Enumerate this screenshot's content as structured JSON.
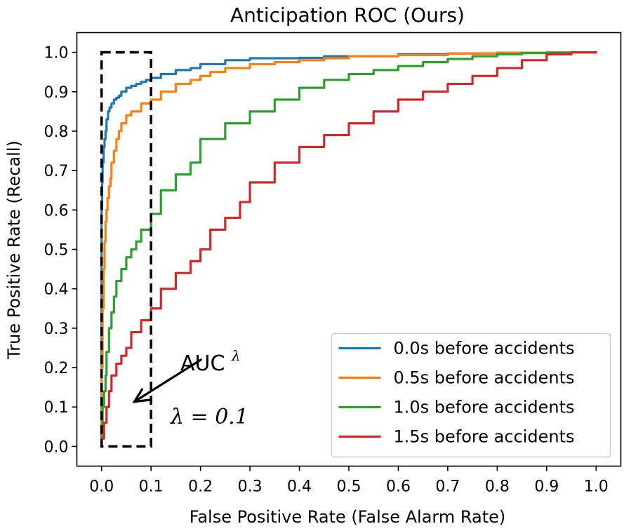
{
  "chart_data": {
    "type": "line",
    "title": "Anticipation ROC (Ours)",
    "xlabel": "False Positive Rate (False Alarm Rate)",
    "ylabel": "True Positive Rate (Recall)",
    "xlim": [
      -0.05,
      1.05
    ],
    "ylim": [
      -0.05,
      1.05
    ],
    "xticks": [
      "0.0",
      "0.1",
      "0.2",
      "0.3",
      "0.4",
      "0.5",
      "0.6",
      "0.7",
      "0.8",
      "0.9",
      "1.0"
    ],
    "yticks": [
      "0.0",
      "0.1",
      "0.2",
      "0.3",
      "0.4",
      "0.5",
      "0.6",
      "0.7",
      "0.8",
      "0.9",
      "1.0"
    ],
    "legend_position": "lower-right",
    "series": [
      {
        "name": "0.0s before accidents",
        "color": "#1f77b4",
        "x": [
          0,
          0,
          0.001,
          0.002,
          0.004,
          0.006,
          0.008,
          0.01,
          0.013,
          0.016,
          0.02,
          0.025,
          0.03,
          0.035,
          0.04,
          0.05,
          0.06,
          0.07,
          0.08,
          0.09,
          0.1,
          0.12,
          0.15,
          0.18,
          0.2,
          0.25,
          0.3,
          0.32,
          0.35,
          0.4,
          0.45,
          0.5,
          0.6,
          0.7,
          0.8,
          0.9,
          1.0
        ],
        "y": [
          0,
          0.4,
          0.6,
          0.67,
          0.72,
          0.76,
          0.78,
          0.8,
          0.83,
          0.85,
          0.86,
          0.87,
          0.88,
          0.885,
          0.89,
          0.9,
          0.91,
          0.915,
          0.92,
          0.925,
          0.93,
          0.935,
          0.945,
          0.955,
          0.96,
          0.97,
          0.98,
          0.985,
          0.985,
          0.985,
          0.986,
          0.99,
          0.99,
          0.995,
          0.997,
          0.999,
          1.0
        ]
      },
      {
        "name": "0.5s before accidents",
        "color": "#ff7f0e",
        "x": [
          0,
          0.002,
          0.004,
          0.006,
          0.008,
          0.01,
          0.012,
          0.015,
          0.018,
          0.02,
          0.025,
          0.03,
          0.035,
          0.04,
          0.05,
          0.06,
          0.08,
          0.1,
          0.12,
          0.15,
          0.18,
          0.2,
          0.22,
          0.25,
          0.3,
          0.35,
          0.4,
          0.45,
          0.5,
          0.55,
          0.6,
          0.7,
          0.8,
          0.9,
          1.0
        ],
        "y": [
          0,
          0.2,
          0.35,
          0.45,
          0.52,
          0.57,
          0.6,
          0.63,
          0.66,
          0.68,
          0.72,
          0.75,
          0.78,
          0.8,
          0.82,
          0.84,
          0.85,
          0.87,
          0.88,
          0.9,
          0.92,
          0.93,
          0.94,
          0.95,
          0.96,
          0.97,
          0.975,
          0.98,
          0.985,
          0.99,
          0.99,
          0.993,
          0.997,
          0.999,
          1.0
        ]
      },
      {
        "name": "1.0s before accidents",
        "color": "#2ca02c",
        "x": [
          0,
          0.002,
          0.005,
          0.008,
          0.01,
          0.015,
          0.02,
          0.025,
          0.03,
          0.04,
          0.05,
          0.06,
          0.07,
          0.08,
          0.1,
          0.12,
          0.15,
          0.18,
          0.2,
          0.25,
          0.3,
          0.35,
          0.4,
          0.45,
          0.5,
          0.55,
          0.6,
          0.65,
          0.7,
          0.75,
          0.8,
          0.85,
          0.9,
          0.95,
          1.0
        ],
        "y": [
          0,
          0.05,
          0.1,
          0.14,
          0.18,
          0.24,
          0.3,
          0.34,
          0.38,
          0.42,
          0.45,
          0.48,
          0.5,
          0.52,
          0.55,
          0.59,
          0.65,
          0.69,
          0.72,
          0.78,
          0.82,
          0.85,
          0.88,
          0.91,
          0.93,
          0.945,
          0.955,
          0.965,
          0.975,
          0.983,
          0.99,
          0.995,
          0.998,
          0.999,
          1.0
        ]
      },
      {
        "name": "1.5s before accidents",
        "color": "#d62728",
        "x": [
          0,
          0.005,
          0.01,
          0.015,
          0.02,
          0.03,
          0.04,
          0.05,
          0.06,
          0.08,
          0.1,
          0.12,
          0.15,
          0.18,
          0.2,
          0.22,
          0.25,
          0.28,
          0.3,
          0.35,
          0.4,
          0.45,
          0.5,
          0.55,
          0.6,
          0.65,
          0.7,
          0.75,
          0.8,
          0.85,
          0.9,
          0.95,
          1.0
        ],
        "y": [
          0,
          0.02,
          0.06,
          0.1,
          0.14,
          0.18,
          0.21,
          0.23,
          0.25,
          0.29,
          0.32,
          0.35,
          0.4,
          0.44,
          0.47,
          0.5,
          0.55,
          0.58,
          0.62,
          0.67,
          0.72,
          0.76,
          0.79,
          0.82,
          0.85,
          0.88,
          0.9,
          0.92,
          0.94,
          0.96,
          0.98,
          0.995,
          1.0
        ]
      }
    ],
    "annotations": {
      "auc_label": "AUC",
      "auc_superscript": "λ",
      "lambda_label": "λ = 0.1",
      "dashed_box": {
        "x": [
          0,
          0.1
        ],
        "y": [
          0,
          1.0
        ]
      },
      "arrow_from": [
        0.16,
        0.2
      ],
      "arrow_to": [
        0.055,
        0.11
      ]
    }
  }
}
